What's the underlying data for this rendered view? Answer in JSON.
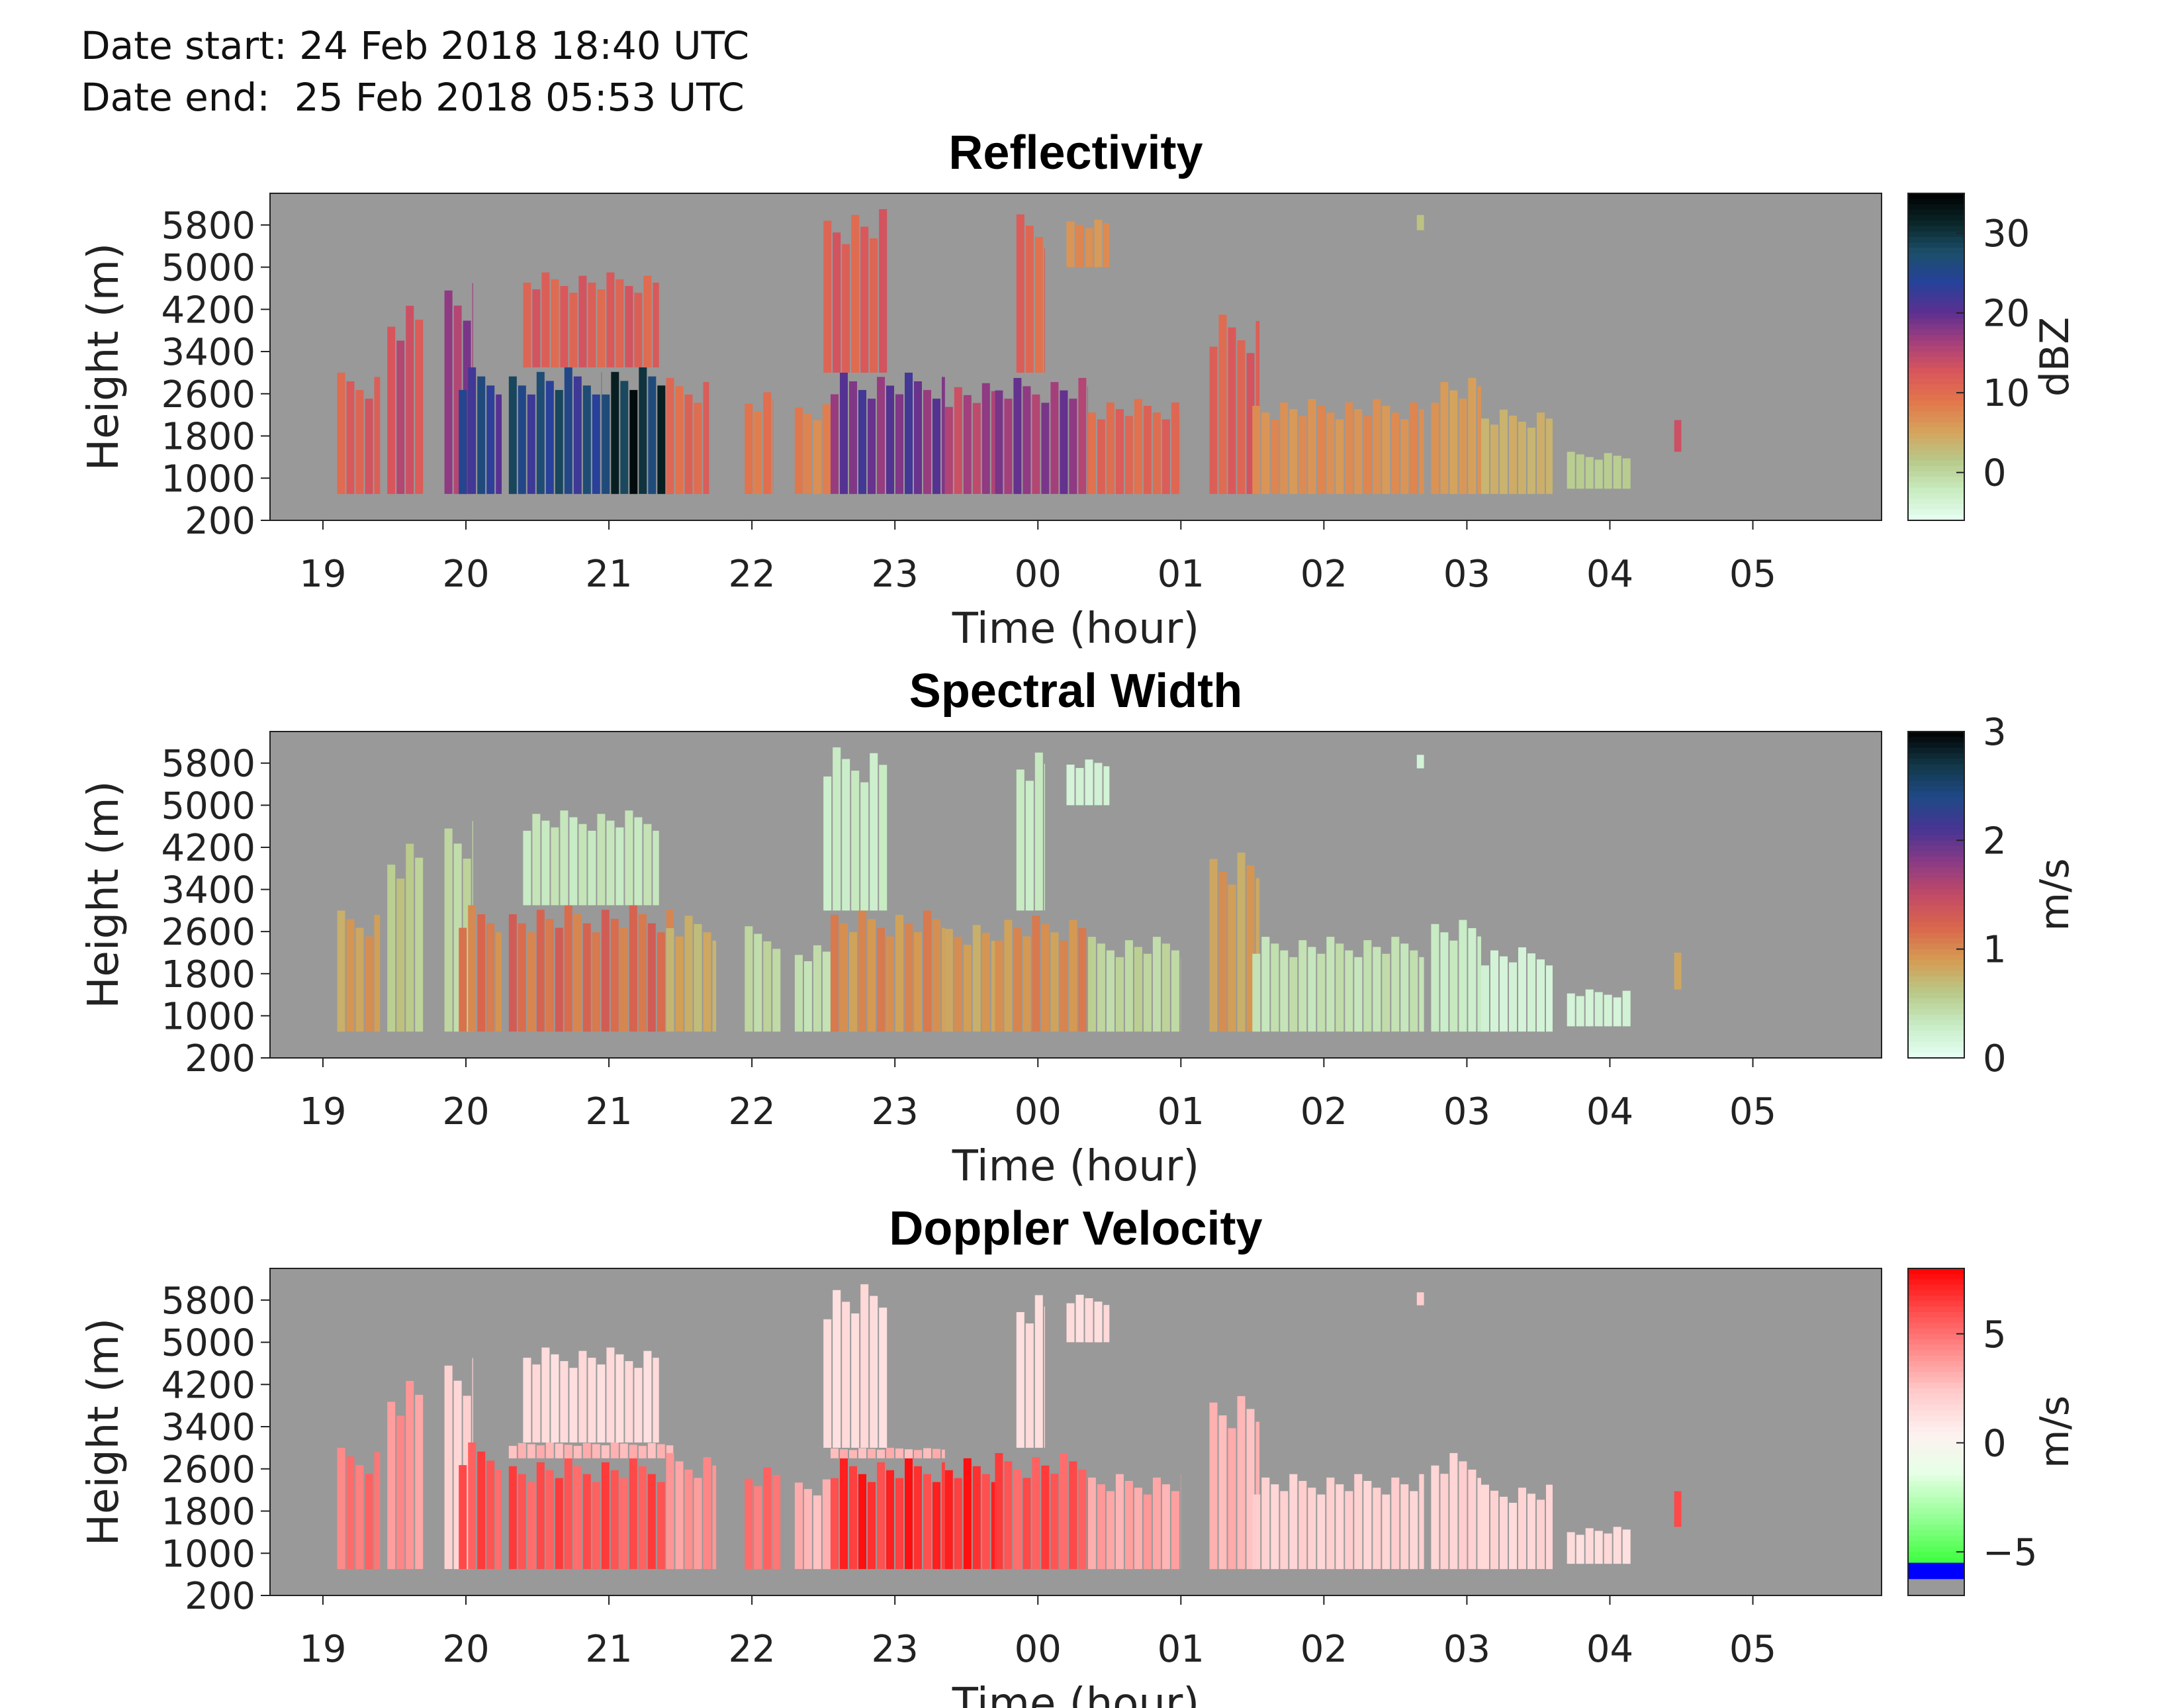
{
  "header": {
    "date_start": "Date start: 24 Feb 2018 18:40 UTC",
    "date_end": "Date end:  25 Feb 2018 05:53 UTC"
  },
  "colors": {
    "background_nodata": "#999999",
    "reflectivity_colormap": [
      "#e6fff4",
      "#c9ecc0",
      "#b7c98a",
      "#d6a35b",
      "#e2764b",
      "#d9565b",
      "#a43f7c",
      "#5b2f91",
      "#26429a",
      "#1c4f6b",
      "#0a2628",
      "#000000"
    ],
    "spectral_width_colormap": [
      "#e6fff4",
      "#c8ecc6",
      "#b9c988",
      "#d59b52",
      "#d9664c",
      "#c24a66",
      "#8a3b86",
      "#473493",
      "#1f4a86",
      "#123746",
      "#000000"
    ],
    "doppler_colormap": [
      "#ff0000",
      "#ff4a4a",
      "#ff8a8a",
      "#ffc9c9",
      "#fff0f0",
      "#e6ffe6",
      "#9cff9c",
      "#4dff4d",
      "#00ff00"
    ],
    "doppler_neg_band": "#0000ff"
  },
  "chart_data": [
    {
      "type": "heatmap",
      "title": "Reflectivity",
      "xlabel": "Time (hour)",
      "ylabel": "Height (m)",
      "x_tick_labels": [
        "19",
        "20",
        "21",
        "22",
        "23",
        "00",
        "01",
        "02",
        "03",
        "04",
        "05"
      ],
      "y_tick_labels": [
        "200",
        "1000",
        "1800",
        "2600",
        "3400",
        "4200",
        "5000",
        "5800"
      ],
      "y_ticks": [
        200,
        1000,
        1800,
        2600,
        3400,
        4200,
        5000,
        5800
      ],
      "ylim": [
        200,
        6400
      ],
      "xlim_hours_after_18": [
        0.63,
        11.9
      ],
      "colorbar": {
        "label": "dBZ",
        "ticks": [
          "0",
          "10",
          "20",
          "30"
        ],
        "tick_values": [
          0,
          10,
          20,
          30
        ],
        "range": [
          -6,
          35
        ]
      },
      "cells": [
        {
          "t": [
            1.1,
            1.4
          ],
          "h": [
            700,
            3000
          ],
          "v": 12
        },
        {
          "t": [
            1.45,
            1.7
          ],
          "h": [
            700,
            4400
          ],
          "v": 14
        },
        {
          "t": [
            1.85,
            2.05
          ],
          "h": [
            700,
            4700
          ],
          "v": 18
        },
        {
          "t": [
            1.95,
            2.25
          ],
          "h": [
            700,
            3100
          ],
          "v": 24
        },
        {
          "t": [
            2.3,
            2.95
          ],
          "h": [
            700,
            3100
          ],
          "v": 26
        },
        {
          "t": [
            2.95,
            3.45
          ],
          "h": [
            700,
            3100
          ],
          "v": 31
        },
        {
          "t": [
            2.4,
            3.35
          ],
          "h": [
            3100,
            4900
          ],
          "v": 12
        },
        {
          "t": [
            3.4,
            3.7
          ],
          "h": [
            700,
            2900
          ],
          "v": 11
        },
        {
          "t": [
            3.95,
            4.15
          ],
          "h": [
            700,
            2700
          ],
          "v": 9
        },
        {
          "t": [
            4.3,
            4.55
          ],
          "h": [
            700,
            2400
          ],
          "v": 8
        },
        {
          "t": [
            4.55,
            5.35
          ],
          "h": [
            700,
            3000
          ],
          "v": 20
        },
        {
          "t": [
            4.5,
            4.95
          ],
          "h": [
            3000,
            6100
          ],
          "v": 12
        },
        {
          "t": [
            5.35,
            5.7
          ],
          "h": [
            700,
            2800
          ],
          "v": 16
        },
        {
          "t": [
            5.7,
            6.35
          ],
          "h": [
            700,
            2900
          ],
          "v": 18
        },
        {
          "t": [
            5.85,
            6.05
          ],
          "h": [
            3000,
            6000
          ],
          "v": 11
        },
        {
          "t": [
            6.35,
            7.0
          ],
          "h": [
            700,
            2500
          ],
          "v": 11
        },
        {
          "t": [
            6.2,
            6.5
          ],
          "h": [
            5000,
            5900
          ],
          "v": 7
        },
        {
          "t": [
            7.2,
            7.55
          ],
          "h": [
            700,
            4100
          ],
          "v": 12
        },
        {
          "t": [
            7.5,
            8.7
          ],
          "h": [
            700,
            2500
          ],
          "v": 7
        },
        {
          "t": [
            8.75,
            9.1
          ],
          "h": [
            700,
            2900
          ],
          "v": 6
        },
        {
          "t": [
            9.1,
            9.6
          ],
          "h": [
            700,
            2300
          ],
          "v": 4
        },
        {
          "t": [
            9.7,
            10.15
          ],
          "h": [
            800,
            1500
          ],
          "v": 1
        },
        {
          "t": [
            10.45,
            10.5
          ],
          "h": [
            1500,
            2200
          ],
          "v": 14
        },
        {
          "t": [
            8.65,
            8.7
          ],
          "h": [
            5700,
            6000
          ],
          "v": 2
        }
      ]
    },
    {
      "type": "heatmap",
      "title": "Spectral Width",
      "xlabel": "Time (hour)",
      "ylabel": "Height (m)",
      "x_tick_labels": [
        "19",
        "20",
        "21",
        "22",
        "23",
        "00",
        "01",
        "02",
        "03",
        "04",
        "05"
      ],
      "y_tick_labels": [
        "200",
        "1000",
        "1800",
        "2600",
        "3400",
        "4200",
        "5000",
        "5800"
      ],
      "y_ticks": [
        200,
        1000,
        1800,
        2600,
        3400,
        4200,
        5000,
        5800
      ],
      "ylim": [
        200,
        6400
      ],
      "xlim_hours_after_18": [
        0.63,
        11.9
      ],
      "colorbar": {
        "label": "m/s",
        "ticks": [
          "0",
          "1",
          "2",
          "3"
        ],
        "tick_values": [
          0,
          1,
          2,
          3
        ],
        "range": [
          0,
          3
        ]
      },
      "cells": [
        {
          "t": [
            1.1,
            1.4
          ],
          "h": [
            700,
            3000
          ],
          "v": 0.9
        },
        {
          "t": [
            1.45,
            1.7
          ],
          "h": [
            700,
            4400
          ],
          "v": 0.6
        },
        {
          "t": [
            1.85,
            2.05
          ],
          "h": [
            700,
            4700
          ],
          "v": 0.5
        },
        {
          "t": [
            1.95,
            2.25
          ],
          "h": [
            700,
            3100
          ],
          "v": 1.1
        },
        {
          "t": [
            2.3,
            3.45
          ],
          "h": [
            700,
            3100
          ],
          "v": 1.2
        },
        {
          "t": [
            2.4,
            3.35
          ],
          "h": [
            3100,
            4900
          ],
          "v": 0.35
        },
        {
          "t": [
            3.4,
            3.75
          ],
          "h": [
            700,
            2900
          ],
          "v": 0.8
        },
        {
          "t": [
            3.95,
            4.2
          ],
          "h": [
            700,
            2700
          ],
          "v": 0.5
        },
        {
          "t": [
            4.3,
            4.55
          ],
          "h": [
            700,
            2400
          ],
          "v": 0.4
        },
        {
          "t": [
            4.55,
            5.35
          ],
          "h": [
            700,
            3000
          ],
          "v": 1.0
        },
        {
          "t": [
            4.5,
            4.95
          ],
          "h": [
            3000,
            6100
          ],
          "v": 0.3
        },
        {
          "t": [
            5.35,
            5.7
          ],
          "h": [
            700,
            2800
          ],
          "v": 0.9
        },
        {
          "t": [
            5.7,
            6.35
          ],
          "h": [
            700,
            2900
          ],
          "v": 1.0
        },
        {
          "t": [
            5.85,
            6.05
          ],
          "h": [
            3000,
            6000
          ],
          "v": 0.3
        },
        {
          "t": [
            6.35,
            7.0
          ],
          "h": [
            700,
            2500
          ],
          "v": 0.5
        },
        {
          "t": [
            6.2,
            6.5
          ],
          "h": [
            5000,
            5900
          ],
          "v": 0.2
        },
        {
          "t": [
            7.2,
            7.55
          ],
          "h": [
            700,
            4100
          ],
          "v": 0.9
        },
        {
          "t": [
            7.5,
            8.7
          ],
          "h": [
            700,
            2500
          ],
          "v": 0.4
        },
        {
          "t": [
            8.75,
            9.1
          ],
          "h": [
            700,
            2900
          ],
          "v": 0.3
        },
        {
          "t": [
            9.1,
            9.6
          ],
          "h": [
            700,
            2300
          ],
          "v": 0.2
        },
        {
          "t": [
            9.7,
            10.15
          ],
          "h": [
            800,
            1500
          ],
          "v": 0.2
        },
        {
          "t": [
            10.45,
            10.5
          ],
          "h": [
            1500,
            2200
          ],
          "v": 0.9
        },
        {
          "t": [
            8.65,
            8.7
          ],
          "h": [
            5700,
            6000
          ],
          "v": 0.2
        }
      ]
    },
    {
      "type": "heatmap",
      "title": "Doppler Velocity",
      "xlabel": "Time (hour)",
      "ylabel": "Height (m)",
      "x_tick_labels": [
        "19",
        "20",
        "21",
        "22",
        "23",
        "00",
        "01",
        "02",
        "03",
        "04",
        "05"
      ],
      "y_tick_labels": [
        "200",
        "1000",
        "1800",
        "2600",
        "3400",
        "4200",
        "5000",
        "5800"
      ],
      "y_ticks": [
        200,
        1000,
        1800,
        2600,
        3400,
        4200,
        5000,
        5800
      ],
      "ylim": [
        200,
        6400
      ],
      "xlim_hours_after_18": [
        0.63,
        11.9
      ],
      "colorbar": {
        "label": "m/s",
        "ticks": [
          "5",
          "0",
          "−5"
        ],
        "tick_values": [
          5,
          0,
          -5
        ],
        "range": [
          -7,
          8
        ]
      },
      "cells": [
        {
          "t": [
            1.1,
            1.4
          ],
          "h": [
            700,
            3000
          ],
          "v": 5
        },
        {
          "t": [
            1.45,
            1.7
          ],
          "h": [
            700,
            4400
          ],
          "v": 4
        },
        {
          "t": [
            1.85,
            2.05
          ],
          "h": [
            700,
            4700
          ],
          "v": 2
        },
        {
          "t": [
            1.95,
            2.25
          ],
          "h": [
            700,
            3100
          ],
          "v": 6
        },
        {
          "t": [
            2.3,
            3.45
          ],
          "h": [
            700,
            2800
          ],
          "v": 6
        },
        {
          "t": [
            2.3,
            3.45
          ],
          "h": [
            2800,
            3100
          ],
          "v": 3
        },
        {
          "t": [
            2.4,
            3.35
          ],
          "h": [
            3100,
            4900
          ],
          "v": 1.5
        },
        {
          "t": [
            3.4,
            3.75
          ],
          "h": [
            700,
            2900
          ],
          "v": 4
        },
        {
          "t": [
            3.95,
            4.2
          ],
          "h": [
            700,
            2700
          ],
          "v": 5
        },
        {
          "t": [
            4.3,
            4.55
          ],
          "h": [
            700,
            2400
          ],
          "v": 3
        },
        {
          "t": [
            4.55,
            5.35
          ],
          "h": [
            700,
            2800
          ],
          "v": 7
        },
        {
          "t": [
            4.55,
            5.35
          ],
          "h": [
            2800,
            3000
          ],
          "v": 3
        },
        {
          "t": [
            4.5,
            4.95
          ],
          "h": [
            3000,
            6100
          ],
          "v": 1.5
        },
        {
          "t": [
            5.35,
            5.7
          ],
          "h": [
            700,
            2800
          ],
          "v": 7
        },
        {
          "t": [
            5.7,
            6.35
          ],
          "h": [
            700,
            2900
          ],
          "v": 6
        },
        {
          "t": [
            5.85,
            6.05
          ],
          "h": [
            3000,
            6000
          ],
          "v": 1.5
        },
        {
          "t": [
            6.35,
            7.0
          ],
          "h": [
            700,
            2500
          ],
          "v": 3.5
        },
        {
          "t": [
            6.2,
            6.5
          ],
          "h": [
            5000,
            5900
          ],
          "v": 1.5
        },
        {
          "t": [
            7.2,
            7.55
          ],
          "h": [
            700,
            4100
          ],
          "v": 3
        },
        {
          "t": [
            7.5,
            8.7
          ],
          "h": [
            700,
            2500
          ],
          "v": 2
        },
        {
          "t": [
            8.75,
            9.1
          ],
          "h": [
            700,
            2900
          ],
          "v": 2
        },
        {
          "t": [
            9.1,
            9.6
          ],
          "h": [
            700,
            2300
          ],
          "v": 1.8
        },
        {
          "t": [
            9.7,
            10.15
          ],
          "h": [
            800,
            1500
          ],
          "v": 1.5
        },
        {
          "t": [
            10.45,
            10.5
          ],
          "h": [
            1500,
            2200
          ],
          "v": 6
        },
        {
          "t": [
            8.65,
            8.7
          ],
          "h": [
            5700,
            6000
          ],
          "v": 2
        }
      ]
    }
  ]
}
